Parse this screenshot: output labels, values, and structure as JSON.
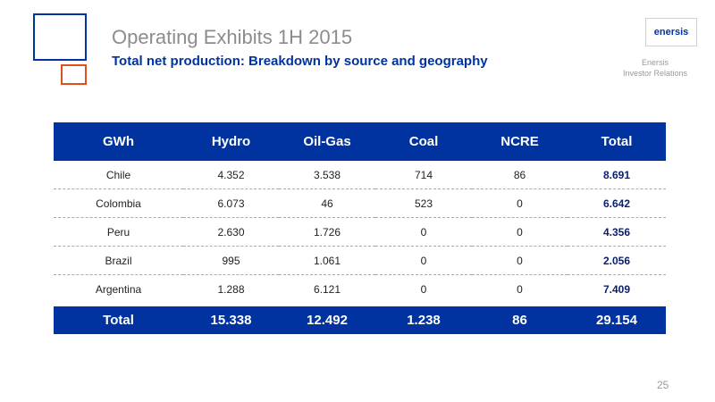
{
  "header": {
    "title": "Operating Exhibits 1H 2015",
    "subtitle": "Total net production: Breakdown by source and geography"
  },
  "logo": {
    "mark": "enersis",
    "company": "Enersis",
    "department": "Investor Relations"
  },
  "table": {
    "columns": [
      "GWh",
      "Hydro",
      "Oil-Gas",
      "Coal",
      "NCRE",
      "Total"
    ],
    "rows": [
      [
        "Chile",
        "4.352",
        "3.538",
        "714",
        "86",
        "8.691"
      ],
      [
        "Colombia",
        "6.073",
        "46",
        "523",
        "0",
        "6.642"
      ],
      [
        "Peru",
        "2.630",
        "1.726",
        "0",
        "0",
        "4.356"
      ],
      [
        "Brazil",
        "995",
        "1.061",
        "0",
        "0",
        "2.056"
      ],
      [
        "Argentina",
        "1.288",
        "6.121",
        "0",
        "0",
        "7.409"
      ]
    ],
    "total": [
      "Total",
      "15.338",
      "12.492",
      "1.238",
      "86",
      "29.154"
    ]
  },
  "page_number": "25"
}
